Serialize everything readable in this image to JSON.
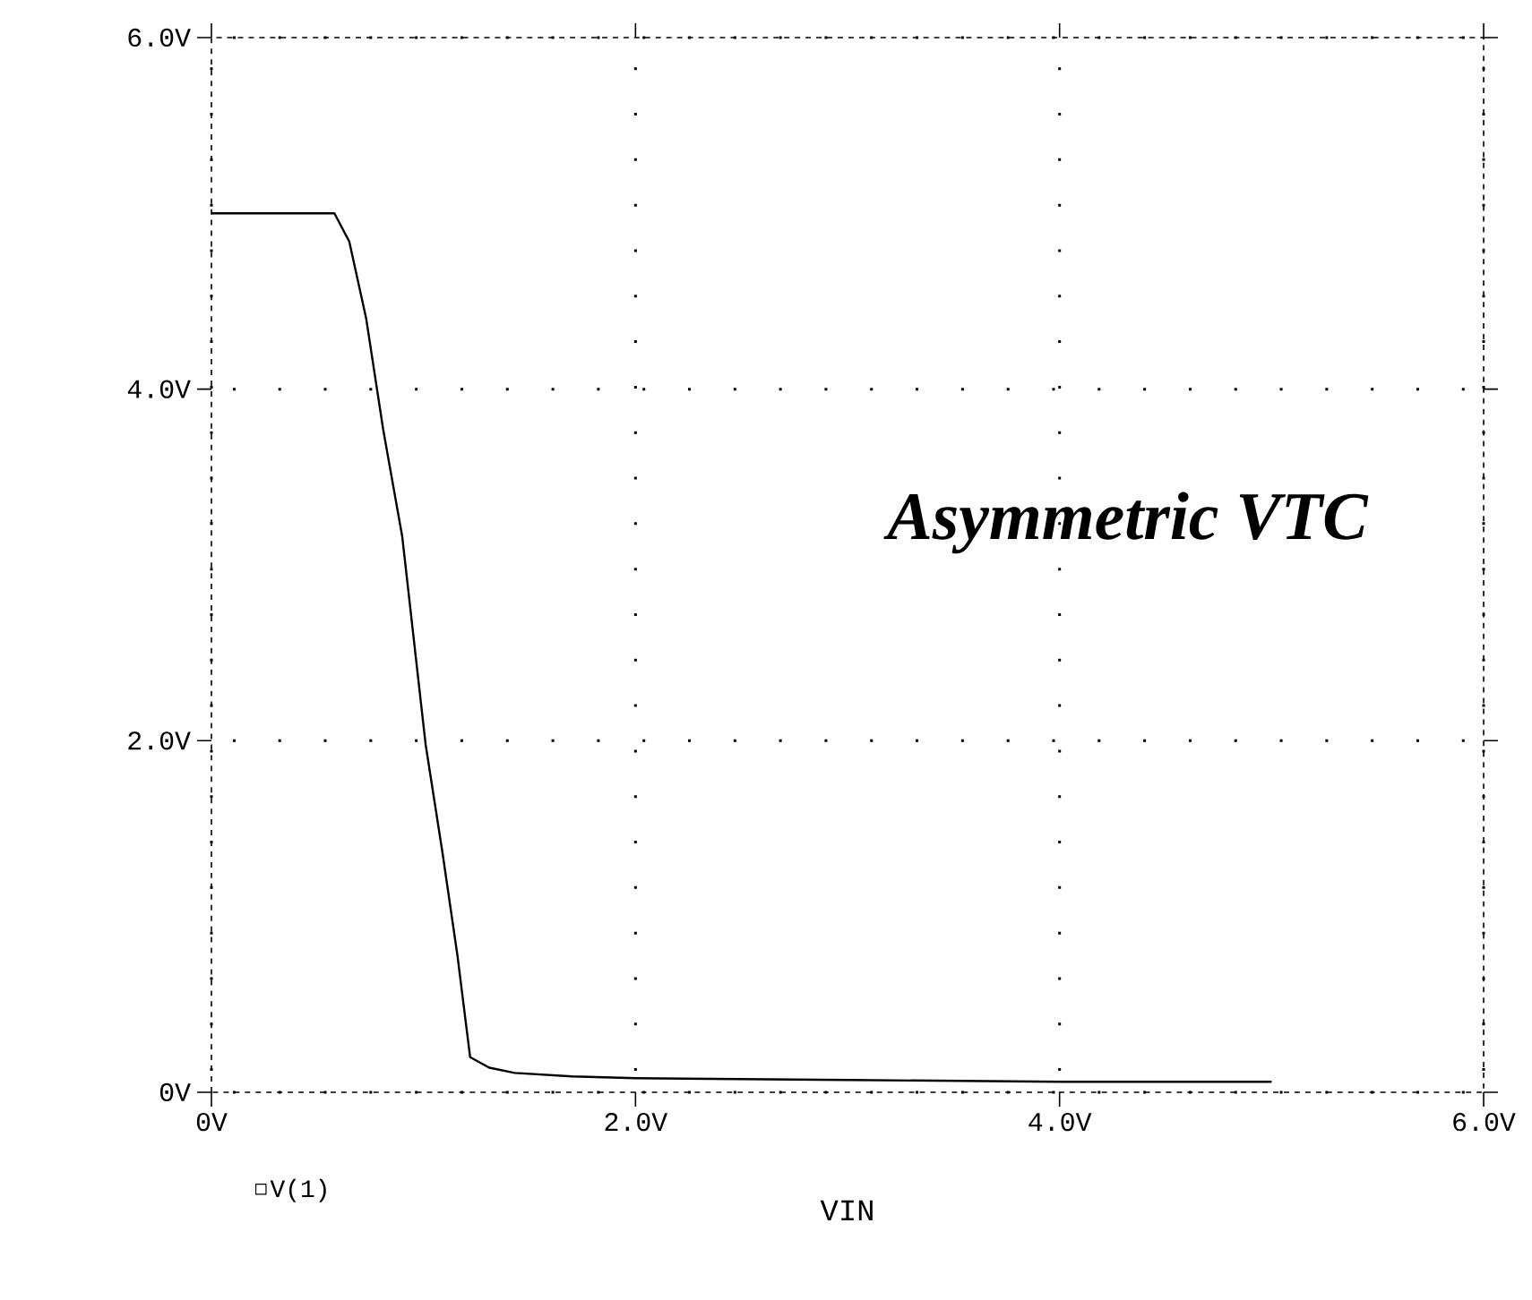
{
  "chart_data": {
    "type": "line",
    "x": [
      0,
      0.58,
      0.65,
      0.73,
      0.81,
      0.9,
      1.01,
      1.09,
      1.16,
      1.22,
      1.31,
      1.43,
      1.7,
      2.0,
      3.0,
      4.0,
      5.0
    ],
    "series": [
      {
        "name": "V(1)",
        "color": "#000000",
        "values": [
          5.0,
          5.0,
          4.84,
          4.4,
          3.77,
          3.16,
          1.98,
          1.36,
          0.78,
          0.2,
          0.14,
          0.11,
          0.09,
          0.08,
          0.07,
          0.06,
          0.06
        ]
      }
    ],
    "xlabel": "VIN",
    "xlim": [
      0,
      6
    ],
    "ylim": [
      0,
      6
    ],
    "xticks": [
      {
        "value": 0,
        "label": "0V"
      },
      {
        "value": 2,
        "label": "2.0V"
      },
      {
        "value": 4,
        "label": "4.0V"
      },
      {
        "value": 6,
        "label": "6.0V"
      }
    ],
    "yticks": [
      {
        "value": 0,
        "label": "0V"
      },
      {
        "value": 2,
        "label": "2.0V"
      },
      {
        "value": 4,
        "label": "4.0V"
      },
      {
        "value": 6,
        "label": "6.0V"
      }
    ],
    "grid": true,
    "legend": "bottom left",
    "marker": "none",
    "line_style": "solid",
    "annotations": [
      "Asymmetric VTC"
    ]
  }
}
